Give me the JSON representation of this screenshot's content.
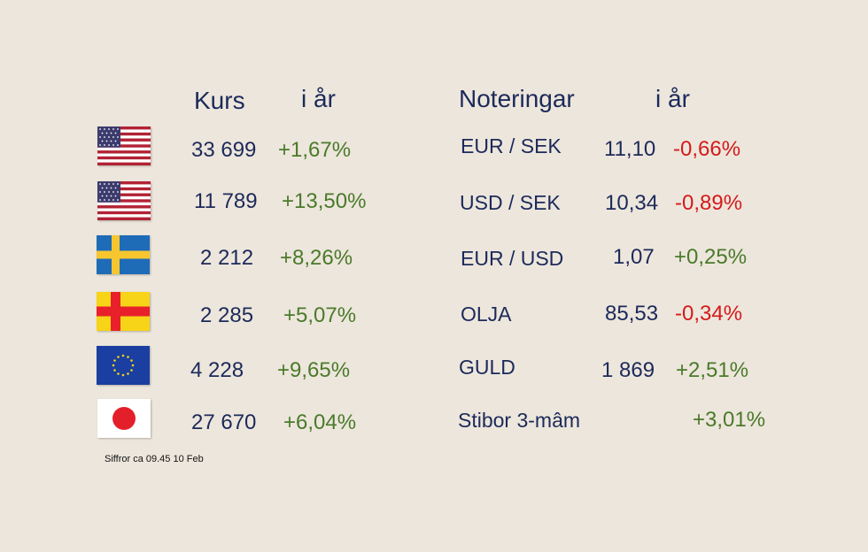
{
  "headers": {
    "kurs": "Kurs",
    "iar_left": "i år",
    "noteringar": "Noteringar",
    "iar_right": "i år"
  },
  "colors": {
    "background": "#ede6dc",
    "text": "#1c2a5a",
    "positive": "#4a7a2a",
    "negative": "#d41a1a"
  },
  "indices": [
    {
      "flag": "usa-flag-icon",
      "value": "33 699",
      "change": "+1,67%"
    },
    {
      "flag": "usa-flag-icon",
      "value": "11 789",
      "change": "+13,50%"
    },
    {
      "flag": "sweden-flag-icon",
      "value": "2 212",
      "change": "+8,26%"
    },
    {
      "flag": "aland-flag-icon",
      "value": "2 285",
      "change": "+5,07%"
    },
    {
      "flag": "eu-flag-icon",
      "value": "4 228",
      "change": "+9,65%"
    },
    {
      "flag": "japan-flag-icon",
      "value": "27 670",
      "change": "+6,04%"
    }
  ],
  "quotes": [
    {
      "label": "EUR / SEK",
      "value": "11,10",
      "change": "-0,66%"
    },
    {
      "label": "USD / SEK",
      "value": "10,34",
      "change": "-0,89%"
    },
    {
      "label": "EUR / USD",
      "value": "1,07",
      "change": "+0,25%"
    },
    {
      "label": "OLJA",
      "value": "85,53",
      "change": "-0,34%"
    },
    {
      "label": "GULD",
      "value": "1 869",
      "change": "+2,51%"
    },
    {
      "label": "Stibor 3-mâm",
      "value": "",
      "change": "+3,01%"
    }
  ],
  "footnote": "Siffror ca 09.45 10 Feb"
}
